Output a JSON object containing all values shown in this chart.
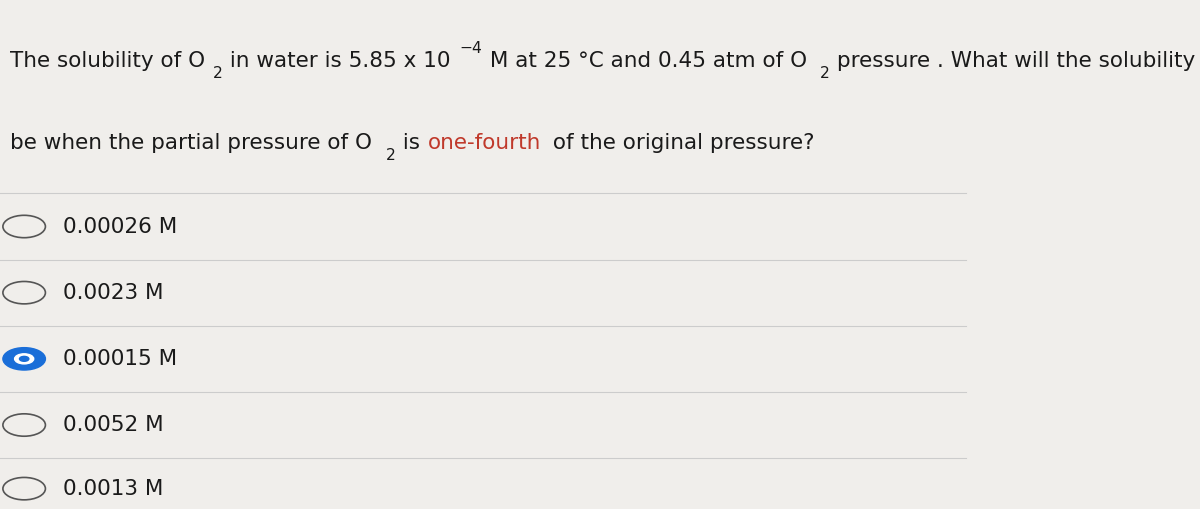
{
  "background_color": "#f0eeeb",
  "question_line1_parts": [
    {
      "text": "The solubility of O",
      "style": "normal",
      "color": "#1a1a1a"
    },
    {
      "text": "2",
      "style": "sub",
      "color": "#1a1a1a"
    },
    {
      "text": " in water is 5.85 x 10",
      "style": "normal",
      "color": "#1a1a1a"
    },
    {
      "text": "−4",
      "style": "super",
      "color": "#1a1a1a"
    },
    {
      "text": " M at 25 °C and 0.45 atm of O",
      "style": "normal",
      "color": "#1a1a1a"
    },
    {
      "text": "2",
      "style": "sub",
      "color": "#1a1a1a"
    },
    {
      "text": " pressure . What will the solubility",
      "style": "normal",
      "color": "#1a1a1a"
    }
  ],
  "question_line2_parts": [
    {
      "text": "be when the partial pressure of O",
      "style": "normal",
      "color": "#1a1a1a"
    },
    {
      "text": "2",
      "style": "sub",
      "color": "#1a1a1a"
    },
    {
      "text": " is ",
      "style": "normal",
      "color": "#1a1a1a"
    },
    {
      "text": "one-fourth",
      "style": "normal",
      "color": "#c0392b"
    },
    {
      "text": " of the original pressure?",
      "style": "normal",
      "color": "#1a1a1a"
    }
  ],
  "options": [
    {
      "label": "0.00026 M",
      "selected": false
    },
    {
      "label": "0.0023 M",
      "selected": false
    },
    {
      "label": "0.00015 M",
      "selected": true
    },
    {
      "label": "0.0052 M",
      "selected": false
    },
    {
      "label": "0.0013 M",
      "selected": false
    }
  ],
  "divider_color": "#cccccc",
  "circle_color_unselected": "#555555",
  "circle_color_selected_fill": "#1a6ed8",
  "circle_color_selected_border": "#1a6ed8",
  "text_color": "#1a1a1a",
  "font_size_question": 15.5,
  "font_size_options": 15.5
}
